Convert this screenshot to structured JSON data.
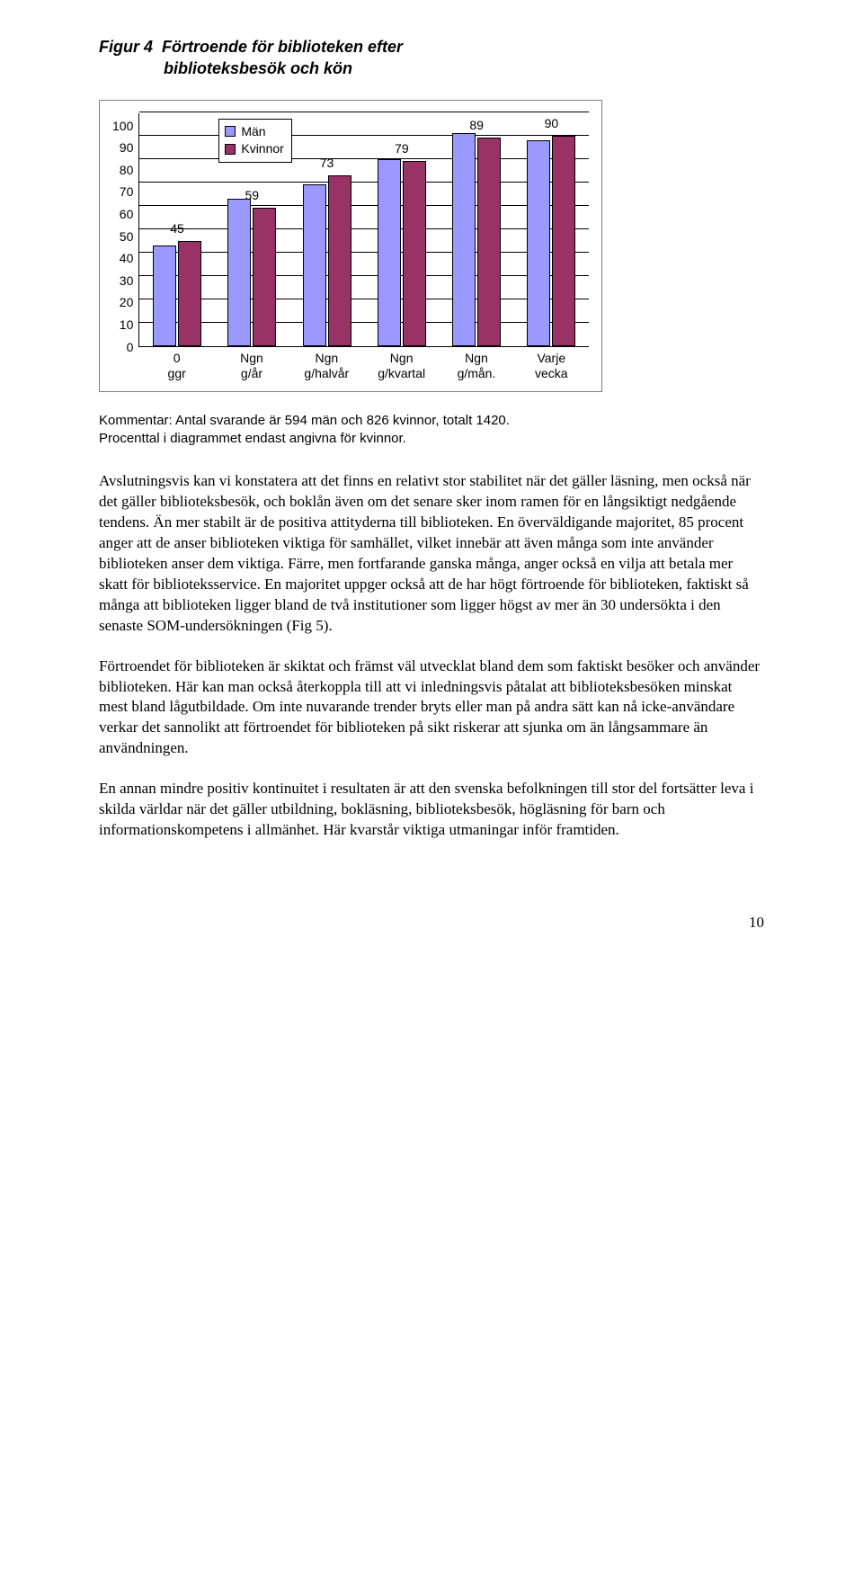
{
  "figure": {
    "label": "Figur 4",
    "title_line1": "Förtroende för biblioteken efter",
    "title_line2": "biblioteksbesök och kön"
  },
  "chart": {
    "type": "bar",
    "ylim": [
      0,
      100
    ],
    "ytick_step": 10,
    "yticks": [
      "100",
      "90",
      "80",
      "70",
      "60",
      "50",
      "40",
      "30",
      "20",
      "10",
      "0"
    ],
    "grid_color": "#000000",
    "background_color": "#ffffff",
    "legend": {
      "items": [
        {
          "label": "Män",
          "color": "#9999ff"
        },
        {
          "label": "Kvinnor",
          "color": "#993366"
        }
      ]
    },
    "series_colors": {
      "man": "#9999ff",
      "kvinnor": "#993366"
    },
    "categories": [
      {
        "label": "0 ggr",
        "man": 43,
        "kvinnor": 45,
        "shown_label": "45",
        "label_on": "kvinnor"
      },
      {
        "label": "Ngn g/år",
        "man": 63,
        "kvinnor": 59,
        "shown_label": "59",
        "label_on": "kvinnor"
      },
      {
        "label": "Ngn g/halvår",
        "man": 69,
        "kvinnor": 73,
        "shown_label": "73",
        "label_on": "kvinnor"
      },
      {
        "label": "Ngn g/kvartal",
        "man": 80,
        "kvinnor": 79,
        "shown_label": "79",
        "label_on": "kvinnor"
      },
      {
        "label": "Ngn g/mån.",
        "man": 91,
        "kvinnor": 89,
        "shown_label": "89",
        "label_on": "kvinnor"
      },
      {
        "label": "Varje vecka",
        "man": 88,
        "kvinnor": 90,
        "shown_label": "90",
        "label_on": "kvinnor"
      }
    ],
    "bar_border_color": "#000000",
    "axis_fontsize": 14
  },
  "kommentar": {
    "line1": "Kommentar: Antal svarande är 594 män och 826 kvinnor, totalt 1420.",
    "line2": "Procenttal i diagrammet endast angivna för kvinnor."
  },
  "paragraphs": {
    "p1": "Avslutningsvis kan vi konstatera att det finns en relativt stor stabilitet när det gäller läsning, men också när det gäller biblioteksbesök, och boklån även om det senare sker inom ramen för en långsiktigt nedgående tendens. Än mer stabilt är de positiva attityderna till biblioteken. En överväldigande majoritet, 85 procent anger att de anser biblioteken viktiga för samhället, vilket innebär att även många som inte använder biblioteken anser dem viktiga. Färre, men fortfarande ganska många, anger också en vilja att betala mer skatt för biblioteksservice. En majoritet uppger också att de har högt förtroende för biblioteken, faktiskt så många att biblioteken ligger bland de två institutioner som ligger högst av mer än 30 undersökta i den senaste SOM-undersökningen (Fig 5).",
    "p2": "Förtroendet för biblioteken är skiktat och främst väl utvecklat bland dem som faktiskt besöker och använder biblioteken. Här kan man också återkoppla till att vi inledningsvis påtalat att biblioteksbesöken minskat mest bland lågutbildade. Om inte nuvarande trender bryts eller man på andra sätt kan nå icke-användare verkar det sannolikt att förtroendet för biblioteken på sikt riskerar att sjunka om än långsammare än användningen.",
    "p3": "En annan mindre positiv kontinuitet i resultaten är att den svenska befolkningen till stor del fortsätter leva i skilda världar när det gäller utbildning, bokläsning, biblioteksbesök, högläsning för barn och informationskompetens i allmänhet. Här kvarstår viktiga utmaningar inför framtiden."
  },
  "page_number": "10"
}
